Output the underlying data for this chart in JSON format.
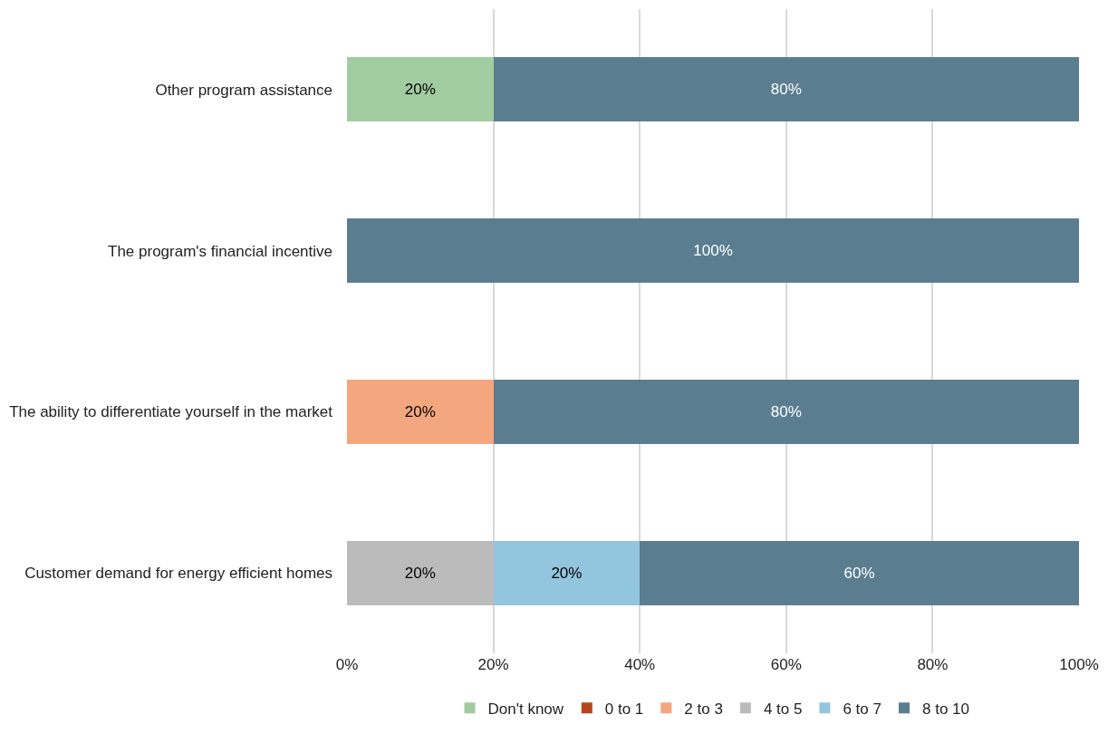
{
  "chart_data": {
    "type": "bar",
    "orientation": "horizontal",
    "stacked": true,
    "categories": [
      "Other program assistance",
      "The program's financial incentive",
      "The ability to differentiate yourself in the market",
      "Customer demand for energy efficient homes"
    ],
    "series": [
      {
        "name": "Don't know",
        "color": "#a1cc9f",
        "values": [
          20,
          0,
          0,
          0
        ],
        "value_labels": [
          "20%",
          null,
          null,
          null
        ]
      },
      {
        "name": "0 to 1",
        "color": "#b5441c",
        "values": [
          0,
          0,
          0,
          0
        ],
        "value_labels": [
          null,
          null,
          null,
          null
        ]
      },
      {
        "name": "2 to 3",
        "color": "#f4a77f",
        "values": [
          0,
          0,
          20,
          0
        ],
        "value_labels": [
          null,
          null,
          "20%",
          null
        ]
      },
      {
        "name": "4 to 5",
        "color": "#bbbbbb",
        "values": [
          0,
          0,
          0,
          20
        ],
        "value_labels": [
          null,
          null,
          null,
          "20%"
        ]
      },
      {
        "name": "6 to 7",
        "color": "#93c5de",
        "values": [
          0,
          0,
          0,
          20
        ],
        "value_labels": [
          null,
          null,
          null,
          "20%"
        ]
      },
      {
        "name": "8 to 10",
        "color": "#5a7d90",
        "values": [
          80,
          100,
          80,
          60
        ],
        "value_labels": [
          "80%",
          "100%",
          "80%",
          "60%"
        ]
      }
    ],
    "xlim": [
      0,
      100
    ],
    "xticks": [
      {
        "value": 0,
        "label": "0%"
      },
      {
        "value": 20,
        "label": "20%"
      },
      {
        "value": 40,
        "label": "40%"
      },
      {
        "value": 60,
        "label": "60%"
      },
      {
        "value": 80,
        "label": "80%"
      },
      {
        "value": 100,
        "label": "100%"
      }
    ],
    "grid": "x",
    "legend": "bottom"
  }
}
